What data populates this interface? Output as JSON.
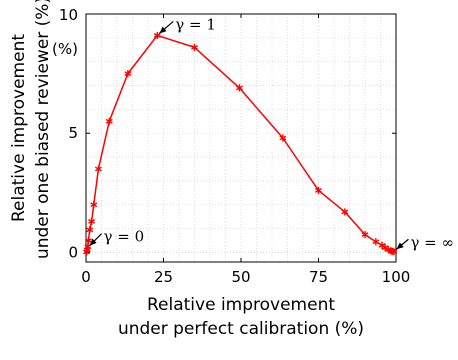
{
  "chart_data": {
    "type": "line",
    "title": "",
    "xlabel": [
      "Relative improvement",
      "under perfect calibration (%)"
    ],
    "ylabel": [
      "Relative improvement",
      "under one biased reviewer (%)"
    ],
    "xlim": [
      0,
      100
    ],
    "ylim": [
      -0.4,
      10
    ],
    "y_top_tick_label": "10",
    "y_unit_label": "(%)",
    "xticks": [
      0,
      25,
      50,
      75,
      100
    ],
    "xtick_labels": [
      "0",
      "25",
      "50",
      "75",
      "100"
    ],
    "yticks": [
      0,
      5,
      10
    ],
    "ytick_labels": [
      "0",
      "5",
      ""
    ],
    "grid": true,
    "series": [
      {
        "color": "#ff0000",
        "marker": "asterisk",
        "x": [
          0.2,
          0.4,
          0.6,
          0.8,
          1.2,
          1.8,
          2.5,
          4.0,
          7.5,
          13.5,
          23.0,
          35.0,
          49.5,
          63.5,
          75.0,
          83.5,
          90.0,
          93.5,
          95.5,
          96.5,
          97.5,
          98.3,
          98.8,
          99.3
        ],
        "y": [
          0.02,
          0.1,
          0.25,
          0.5,
          0.95,
          1.3,
          2.0,
          3.5,
          5.5,
          7.5,
          9.1,
          8.6,
          6.9,
          4.8,
          2.6,
          1.7,
          0.75,
          0.45,
          0.3,
          0.2,
          0.12,
          0.07,
          0.05,
          0.03
        ]
      }
    ],
    "annotations": [
      {
        "text": "γ = 1",
        "x": 23.0,
        "y": 9.1
      },
      {
        "text": "γ = 0",
        "x": 0.5,
        "y": 0.2
      },
      {
        "text": "γ = ∞",
        "x": 99.5,
        "y": 0.05
      }
    ]
  }
}
